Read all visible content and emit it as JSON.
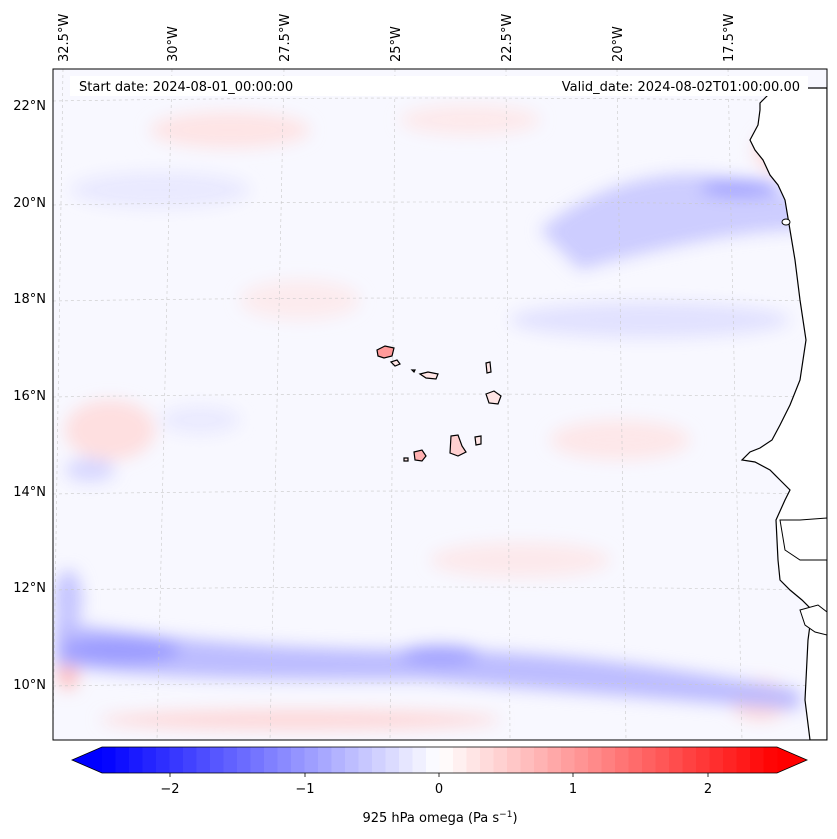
{
  "map": {
    "header": {
      "start_date": "Start date: 2024-08-01_00:00:00",
      "valid_date": "Valid_date: 2024-08-02T01:00:00.00"
    },
    "lon_labels": [
      "32.5°W",
      "30°W",
      "27.5°W",
      "25°W",
      "22.5°W",
      "20°W",
      "17.5°W"
    ],
    "lat_labels": [
      "22°N",
      "20°N",
      "18°N",
      "16°N",
      "14°N",
      "12°N",
      "10°N"
    ],
    "colorbar": {
      "ticks": [
        "−2",
        "−1",
        "0",
        "1",
        "2"
      ],
      "label": "925 hPa omega (Pa s",
      "label_exp": "−1",
      "label_end": ")",
      "range": [
        -2.6,
        2.6
      ],
      "colors": {
        "negative": "#0000ff",
        "zero": "#ffffff",
        "positive": "#ff0000"
      }
    },
    "colors": {
      "coast": "#000000",
      "grid": "#bfbfbf",
      "land_fill": "#ffffff"
    }
  }
}
